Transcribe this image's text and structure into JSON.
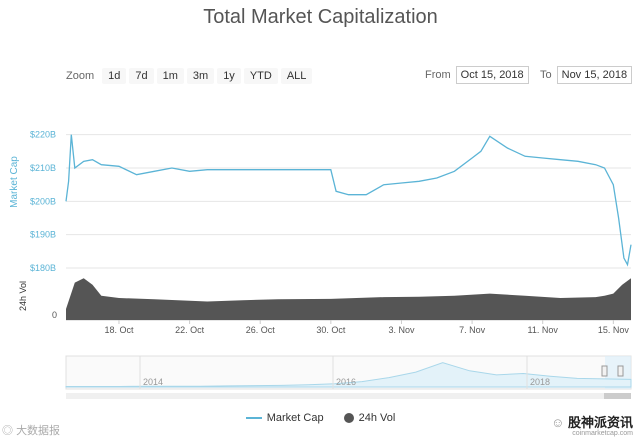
{
  "title": "Total Market Capitalization",
  "zoom": {
    "label": "Zoom",
    "buttons": [
      "1d",
      "7d",
      "1m",
      "3m",
      "1y",
      "YTD",
      "ALL"
    ]
  },
  "range": {
    "from_label": "From",
    "from_value": "Oct 15, 2018",
    "to_label": "To",
    "to_value": "Nov 15, 2018"
  },
  "colors": {
    "line": "#5bb4d6",
    "volume": "#555555",
    "navigator": "#a9d7ea"
  },
  "chart_data": {
    "type": "line",
    "title": "Total Market Capitalization",
    "ylabel": "Market Cap",
    "ylim": [
      180,
      222
    ],
    "yticks": [
      "$220B",
      "$210B",
      "$200B",
      "$190B",
      "$180B"
    ],
    "ytick_values": [
      220,
      210,
      200,
      190,
      180
    ],
    "xticks": [
      "18. Oct",
      "22. Oct",
      "26. Oct",
      "30. Oct",
      "3. Nov",
      "7. Nov",
      "11. Nov",
      "15. Nov"
    ],
    "xtick_days": [
      3,
      7,
      11,
      15,
      19,
      23,
      27,
      31
    ],
    "xlim": [
      0,
      32
    ],
    "series": [
      {
        "name": "Market Cap",
        "x": [
          0,
          0.15,
          0.3,
          0.5,
          1,
          1.5,
          2,
          3,
          4,
          5,
          6,
          7,
          8,
          9,
          10,
          11,
          12,
          13,
          14,
          15,
          15.3,
          16,
          17,
          18,
          19,
          20,
          21,
          22,
          23,
          23.5,
          24,
          25,
          26,
          27,
          28,
          29,
          30,
          30.5,
          31,
          31.3,
          31.6,
          31.8,
          32
        ],
        "values": [
          200,
          206,
          220,
          210,
          212,
          212.5,
          211,
          210.5,
          208,
          209,
          210,
          209,
          209.5,
          209.5,
          209.5,
          209.5,
          209.5,
          209.5,
          209.5,
          209.5,
          203,
          202,
          202,
          205,
          205.5,
          206,
          207,
          209,
          213,
          215,
          219.5,
          216,
          213.5,
          213,
          212.5,
          212,
          211,
          210,
          205,
          195,
          183,
          181,
          187
        ]
      },
      {
        "name": "24h Vol",
        "x": [
          0,
          0.5,
          1,
          1.5,
          2,
          3,
          5,
          8,
          10,
          12,
          15,
          18,
          20,
          22,
          24,
          26,
          28,
          30,
          30.5,
          31,
          31.5,
          32
        ],
        "values": [
          0.25,
          0.85,
          0.95,
          0.8,
          0.55,
          0.5,
          0.47,
          0.42,
          0.45,
          0.47,
          0.48,
          0.52,
          0.53,
          0.55,
          0.6,
          0.55,
          0.5,
          0.52,
          0.55,
          0.6,
          0.8,
          0.95
        ]
      }
    ],
    "volume": {
      "label": "24h Vol",
      "tick": "0"
    },
    "navigator": {
      "years": [
        "2014",
        "2016",
        "2018"
      ],
      "values": [
        0.02,
        0.02,
        0.02,
        0.03,
        0.03,
        0.03,
        0.04,
        0.05,
        0.06,
        0.08,
        0.12,
        0.2,
        0.35,
        0.55,
        0.9,
        0.6,
        0.45,
        0.5,
        0.4,
        0.32,
        0.3,
        0.28
      ]
    },
    "legend": [
      "Market Cap",
      "24h Vol"
    ]
  },
  "watermark_left": "大数据报",
  "watermark_right": "股神派资讯",
  "credit": "coinmarketcap.com"
}
